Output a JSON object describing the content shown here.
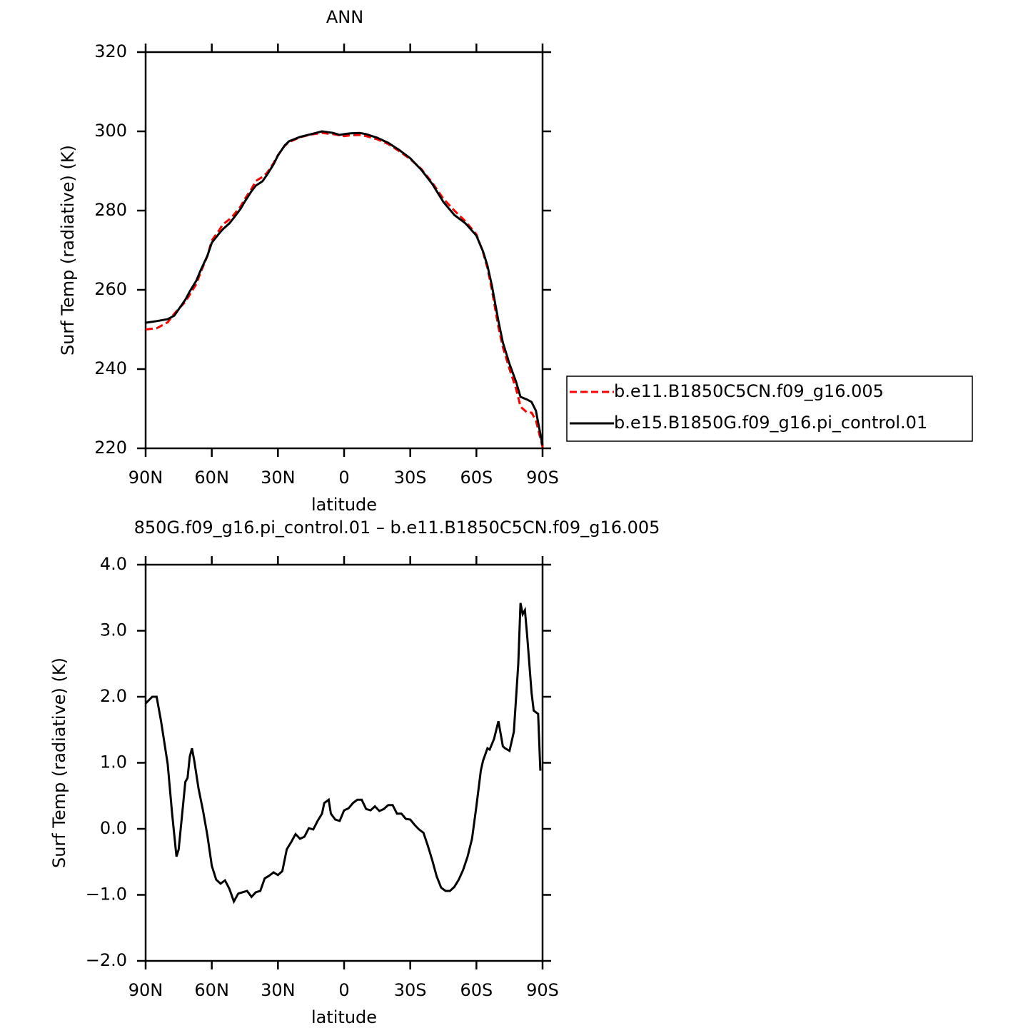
{
  "chart_data": [
    {
      "type": "line",
      "title": "ANN",
      "xlabel": "latitude",
      "ylabel": "Surf Temp (radiative) (K)",
      "x": [
        90,
        85,
        80,
        77,
        75,
        72,
        70,
        67,
        65,
        62,
        60,
        57,
        55,
        52,
        50,
        47,
        45,
        42,
        40,
        37,
        35,
        32,
        30,
        27,
        25,
        20,
        15,
        10,
        5,
        2,
        0,
        -3,
        -7,
        -10,
        -15,
        -20,
        -25,
        -30,
        -35,
        -40,
        -45,
        -50,
        -55,
        -60,
        -63,
        -65,
        -67,
        -70,
        -72,
        -75,
        -78,
        -80,
        -83,
        -85,
        -87,
        -90
      ],
      "xlim": [
        90,
        -90
      ],
      "xticks": [
        {
          "value": 90,
          "label": "90N"
        },
        {
          "value": 60,
          "label": "60N"
        },
        {
          "value": 30,
          "label": "30N"
        },
        0,
        {
          "value": -30,
          "label": "30S"
        },
        {
          "value": -60,
          "label": "60S"
        },
        {
          "value": -90,
          "label": "90S"
        }
      ],
      "ylim": [
        220,
        320
      ],
      "yticks": [
        220,
        240,
        260,
        280,
        300,
        320
      ],
      "legend": "right",
      "series": [
        {
          "name": "b.e11.B1850C5CN.f09_g16.005",
          "color": "#ff0000",
          "line_style": "dashed",
          "values": [
            250,
            250.3,
            251.8,
            254,
            255.2,
            257,
            258.8,
            261.5,
            264.5,
            268.5,
            272.5,
            274.8,
            276.5,
            277.8,
            279,
            281,
            283,
            285.5,
            287.5,
            288.5,
            289.5,
            292,
            294,
            296.3,
            297.3,
            298.5,
            299.2,
            299.6,
            299.3,
            299,
            298.8,
            299,
            299.1,
            298.8,
            298,
            296.8,
            295,
            293,
            290.5,
            287,
            283,
            280,
            277.3,
            274,
            269.5,
            265.5,
            260,
            250.5,
            245.5,
            240,
            235,
            230.5,
            229,
            229,
            227,
            220.3
          ]
        },
        {
          "name": "b.e15.B1850G.f09_g16.pi_control.01",
          "color": "#000000",
          "line_style": "solid",
          "values": [
            251.7,
            252.1,
            252.6,
            253.5,
            255.1,
            257.5,
            259.6,
            262.3,
            265,
            268.6,
            271.9,
            274,
            275.3,
            276.8,
            278.2,
            280.4,
            282.3,
            284.9,
            286.3,
            287.4,
            289,
            291.7,
            293.9,
            296.4,
            297.5,
            298.6,
            299.3,
            300,
            299.6,
            299.1,
            299.3,
            299.5,
            299.6,
            299.3,
            298.4,
            297.1,
            295.3,
            293.2,
            290.3,
            286.7,
            282.2,
            278.9,
            276.8,
            273.7,
            269.7,
            266.1,
            261.1,
            252.1,
            246.7,
            241.3,
            236.8,
            233,
            232.3,
            231.7,
            229.5,
            220.7
          ]
        }
      ]
    },
    {
      "type": "line",
      "title": "850G.f09_g16.pi_control.01 – b.e11.B1850C5CN.f09_g16.005",
      "xlabel": "latitude",
      "ylabel": "Surf Temp (radiative) (K)",
      "x": [
        90,
        87,
        85,
        83,
        80,
        78,
        76,
        75,
        72,
        71,
        70,
        69,
        68,
        66,
        64,
        62,
        60,
        58,
        56,
        54,
        52,
        50,
        48,
        46,
        44,
        42,
        40,
        38,
        36,
        34,
        32,
        30,
        28,
        26,
        24,
        22,
        20,
        18,
        16,
        14,
        12,
        10,
        9,
        7,
        6,
        4,
        2,
        0,
        -2,
        -4,
        -6,
        -8,
        -10,
        -12,
        -14,
        -16,
        -18,
        -20,
        -22,
        -24,
        -26,
        -28,
        -30,
        -32,
        -34,
        -36,
        -38,
        -40,
        -42,
        -44,
        -46,
        -48,
        -50,
        -52,
        -54,
        -56,
        -58,
        -60,
        -62,
        -63,
        -65,
        -66,
        -68,
        -70,
        -72,
        -73,
        -75,
        -77,
        -79,
        -80,
        -81,
        -82,
        -83,
        -85,
        -86,
        -88,
        -89
      ],
      "xlim": [
        90,
        -90
      ],
      "xticks": [
        {
          "value": 90,
          "label": "90N"
        },
        {
          "value": 60,
          "label": "60N"
        },
        {
          "value": 30,
          "label": "30N"
        },
        0,
        {
          "value": -30,
          "label": "30S"
        },
        {
          "value": -60,
          "label": "60S"
        },
        {
          "value": -90,
          "label": "90S"
        }
      ],
      "ylim": [
        -2,
        4
      ],
      "yticks": [
        {
          "value": -2,
          "label": "−2.0"
        },
        {
          "value": -1,
          "label": "−1.0"
        },
        {
          "value": 0,
          "label": "0.0"
        },
        {
          "value": 1,
          "label": "1.0"
        },
        {
          "value": 2,
          "label": "2.0"
        },
        {
          "value": 3,
          "label": "3.0"
        },
        {
          "value": 4,
          "label": "4.0"
        }
      ],
      "series": [
        {
          "color": "#000000",
          "line_style": "solid",
          "values": [
            1.9,
            2.0,
            2.0,
            1.63,
            0.98,
            0.23,
            -0.42,
            -0.31,
            0.71,
            0.77,
            1.09,
            1.22,
            1.04,
            0.61,
            0.28,
            -0.1,
            -0.56,
            -0.77,
            -0.83,
            -0.78,
            -0.91,
            -1.1,
            -0.98,
            -0.96,
            -0.94,
            -1.03,
            -0.96,
            -0.94,
            -0.75,
            -0.71,
            -0.66,
            -0.7,
            -0.64,
            -0.31,
            -0.2,
            -0.08,
            -0.15,
            -0.12,
            0.01,
            -0.01,
            0.12,
            0.23,
            0.39,
            0.44,
            0.23,
            0.14,
            0.12,
            0.28,
            0.31,
            0.39,
            0.44,
            0.44,
            0.3,
            0.28,
            0.34,
            0.27,
            0.3,
            0.36,
            0.36,
            0.23,
            0.23,
            0.15,
            0.14,
            0.06,
            -0.01,
            -0.06,
            -0.26,
            -0.48,
            -0.72,
            -0.89,
            -0.94,
            -0.94,
            -0.88,
            -0.77,
            -0.62,
            -0.42,
            -0.15,
            0.34,
            0.88,
            1.03,
            1.22,
            1.2,
            1.36,
            1.63,
            1.25,
            1.22,
            1.18,
            1.47,
            2.5,
            3.42,
            3.25,
            3.31,
            2.93,
            2.06,
            1.79,
            1.74,
            0.88
          ]
        }
      ]
    }
  ]
}
